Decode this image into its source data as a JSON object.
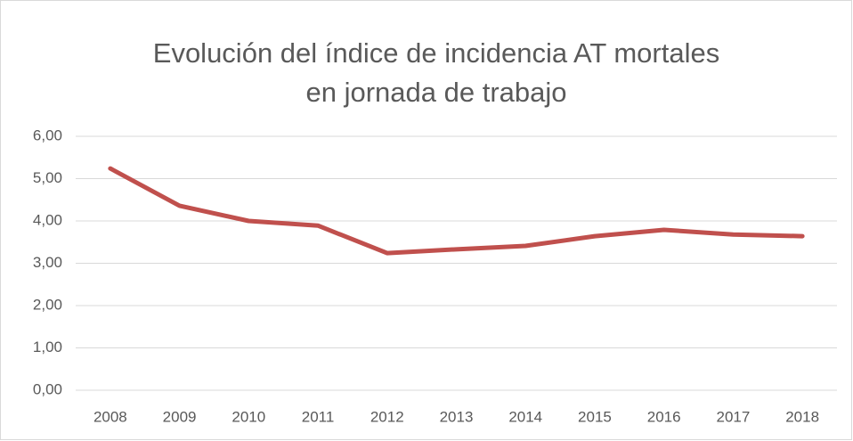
{
  "chart_data": {
    "type": "line",
    "title": "Evolución del índice de incidencia AT mortales en jornada de trabajo",
    "categories": [
      "2008",
      "2009",
      "2010",
      "2011",
      "2012",
      "2013",
      "2014",
      "2015",
      "2016",
      "2017",
      "2018"
    ],
    "values": [
      5.24,
      4.36,
      4.0,
      3.89,
      3.24,
      3.33,
      3.41,
      3.64,
      3.79,
      3.68,
      3.64
    ],
    "color": "#c0504d",
    "ylim": [
      0,
      6
    ],
    "yticks": [
      {
        "value": 0,
        "label": "0,00"
      },
      {
        "value": 1,
        "label": "1,00"
      },
      {
        "value": 2,
        "label": "2,00"
      },
      {
        "value": 3,
        "label": "3,00"
      },
      {
        "value": 4,
        "label": "4,00"
      },
      {
        "value": 5,
        "label": "5,00"
      },
      {
        "value": 6,
        "label": "6,00"
      }
    ],
    "grid": true
  }
}
